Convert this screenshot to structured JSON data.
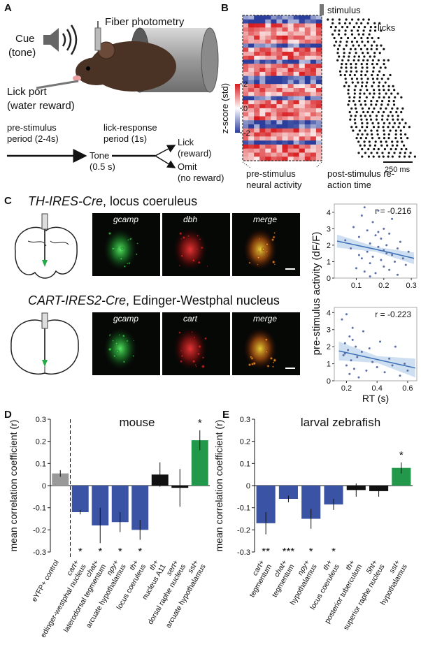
{
  "panel_a": {
    "letter": "A",
    "fiber": "Fiber photometry",
    "cue": [
      "Cue",
      "(tone)"
    ],
    "lick_port": [
      "Lick port",
      "(water reward)"
    ],
    "pre": [
      "pre-stimulus",
      "period (2-4s)"
    ],
    "tone": [
      "Tone",
      "(0.5 s)"
    ],
    "lick_response": [
      "lick-response",
      "period (1s)"
    ],
    "lick": [
      "Lick",
      "(reward)"
    ],
    "omit": [
      "Omit",
      "(no reward)"
    ]
  },
  "panel_b": {
    "letter": "B",
    "stimulus": "stimulus",
    "licks": "licks",
    "colorbar_label": "z-score (std)",
    "colorbar_ticks": [
      2,
      0,
      -2
    ],
    "scale_bar": "250 ms",
    "pre": [
      "pre-stimulus",
      "neural activity"
    ],
    "post": [
      "post-stimulus re-",
      "action time"
    ]
  },
  "panel_c": {
    "letter": "C",
    "rows": [
      {
        "genotype": "TH-IRES-Cre",
        "region": ", locus coeruleus",
        "channels": [
          "gcamp",
          "dbh",
          "merge"
        ]
      },
      {
        "genotype": "CART-IRES2-Cre",
        "region": ", Edinger-Westphal nucleus",
        "channels": [
          "gcamp",
          "cart",
          "merge"
        ]
      }
    ]
  },
  "panel_d": {
    "letter": "D"
  },
  "panel_e": {
    "letter": "E"
  },
  "chart_data": [
    {
      "type": "scatter",
      "ylabel": "pre-stimulus activity (dF/F)",
      "annotation": "r = -0.216",
      "color": "#5b6ea6",
      "x": [
        0.06,
        0.08,
        0.09,
        0.1,
        0.11,
        0.12,
        0.12,
        0.13,
        0.14,
        0.14,
        0.15,
        0.15,
        0.16,
        0.16,
        0.17,
        0.17,
        0.18,
        0.18,
        0.19,
        0.19,
        0.2,
        0.2,
        0.21,
        0.21,
        0.22,
        0.22,
        0.23,
        0.23,
        0.24,
        0.25,
        0.25,
        0.26,
        0.27,
        0.28,
        0.29,
        0.13,
        0.15,
        0.18,
        0.2,
        0.11
      ],
      "values": [
        2.3,
        1.8,
        3.1,
        0.6,
        2.5,
        1.2,
        3.8,
        0.4,
        2.9,
        1.6,
        2.1,
        0.9,
        3.4,
        1.3,
        2.6,
        0.3,
        1.9,
        4.1,
        1.1,
        2.4,
        0.7,
        3.0,
        1.5,
        2.0,
        0.5,
        2.7,
        1.4,
        3.6,
        1.0,
        1.8,
        0.2,
        2.2,
        1.2,
        0.8,
        1.6,
        4.3,
        0.1,
        2.8,
        1.7,
        1.4
      ],
      "fit": {
        "color": "#3b6fb6",
        "band_color": "#c6d9ee",
        "x": [
          0.03,
          0.17,
          0.31
        ],
        "values": [
          2.25,
          1.75,
          1.2
        ],
        "lower": [
          1.85,
          1.6,
          0.85
        ],
        "upper": [
          2.65,
          1.9,
          1.55
        ]
      },
      "xlim": [
        0.02,
        0.32
      ],
      "xticks": [
        0.1,
        0.2,
        0.3
      ],
      "ylim": [
        0,
        4.5
      ],
      "yticks": [
        0,
        1,
        2,
        3,
        4
      ]
    },
    {
      "type": "scatter",
      "xlabel": "RT (s)",
      "annotation": "r = -0.223",
      "color": "#5b6ea6",
      "x": [
        0.17,
        0.18,
        0.19,
        0.2,
        0.2,
        0.21,
        0.22,
        0.22,
        0.23,
        0.24,
        0.25,
        0.26,
        0.27,
        0.28,
        0.3,
        0.31,
        0.33,
        0.35,
        0.37,
        0.4,
        0.42,
        0.45,
        0.48,
        0.5,
        0.52,
        0.55,
        0.58,
        0.6,
        0.19,
        0.24
      ],
      "values": [
        3.6,
        1.5,
        2.2,
        0.9,
        3.9,
        1.8,
        0.4,
        2.6,
        1.2,
        3.1,
        0.7,
        2.0,
        1.4,
        0.2,
        1.7,
        2.9,
        0.6,
        1.9,
        1.1,
        0.8,
        2.3,
        0.5,
        1.3,
        0.9,
        2.0,
        0.3,
        1.0,
        0.6,
        1.6,
        2.4
      ],
      "fit": {
        "color": "#3b6fb6",
        "band_color": "#c6d9ee",
        "x": [
          0.15,
          0.4,
          0.65
        ],
        "values": [
          1.75,
          1.25,
          0.75
        ],
        "lower": [
          1.2,
          1.05,
          0.2
        ],
        "upper": [
          2.3,
          1.45,
          1.3
        ]
      },
      "xlim": [
        0.12,
        0.66
      ],
      "xticks": [
        0.2,
        0.4,
        0.6
      ],
      "ylim": [
        0,
        4.3
      ],
      "yticks": [
        0,
        1,
        2,
        3,
        4
      ]
    },
    {
      "type": "bar",
      "title": "mouse",
      "ylabel": "mean correlation coefficient (r)",
      "divider": true,
      "categories": [
        [
          "eYFP+ control"
        ],
        [
          "cart+",
          "edinger-westphal nucleus"
        ],
        [
          "chat+",
          "laterodorsal tegmentum"
        ],
        [
          "npy+",
          "arcuate hypothalamus"
        ],
        [
          "th+",
          "locus coeruleus"
        ],
        [
          "th+",
          "nucleus A11"
        ],
        [
          "sert+",
          "dorsal raphe nucleus"
        ],
        [
          "sst+",
          "arcuate hypothalamus"
        ]
      ],
      "values": [
        0.055,
        -0.12,
        -0.18,
        -0.165,
        -0.2,
        0.05,
        -0.01,
        0.205
      ],
      "errors": [
        0.015,
        0.01,
        0.08,
        0.045,
        0.045,
        0.055,
        0.085,
        0.045
      ],
      "colors": [
        "#999999",
        "#3a53a4",
        "#3a53a4",
        "#3a53a4",
        "#3a53a4",
        "#111111",
        "#111111",
        "#22994a"
      ],
      "significance": [
        null,
        "*",
        "*",
        "*",
        "*",
        null,
        null,
        "*"
      ],
      "ylim": [
        -0.3,
        0.3
      ],
      "yticks": [
        0.3,
        0.2,
        0.1,
        0,
        -0.1,
        -0.2,
        -0.3
      ]
    },
    {
      "type": "bar",
      "title": "larval zebrafish",
      "ylabel": "mean correlation coefficient (r)",
      "categories": [
        [
          "cart+",
          "tegmentum"
        ],
        [
          "chat+",
          "tegmentum"
        ],
        [
          "npy+",
          "hypothalamus"
        ],
        [
          "th+",
          "locus coeruleus"
        ],
        [
          "th+",
          "posterior tuberculum"
        ],
        [
          "5ht+",
          "superior raphe nucleus"
        ],
        [
          "sst+",
          "hypothalamus"
        ]
      ],
      "values": [
        -0.17,
        -0.06,
        -0.15,
        -0.085,
        -0.02,
        -0.025,
        0.08
      ],
      "errors": [
        0.05,
        0.015,
        0.045,
        0.025,
        0.03,
        0.025,
        0.025
      ],
      "colors": [
        "#3a53a4",
        "#3a53a4",
        "#3a53a4",
        "#3a53a4",
        "#111111",
        "#111111",
        "#22994a"
      ],
      "significance": [
        "**",
        "***",
        "*",
        "*",
        null,
        null,
        "*"
      ],
      "ylim": [
        -0.3,
        0.3
      ],
      "yticks": [
        0.3,
        0.2,
        0.1,
        0,
        -0.1,
        -0.2,
        -0.3
      ]
    }
  ]
}
